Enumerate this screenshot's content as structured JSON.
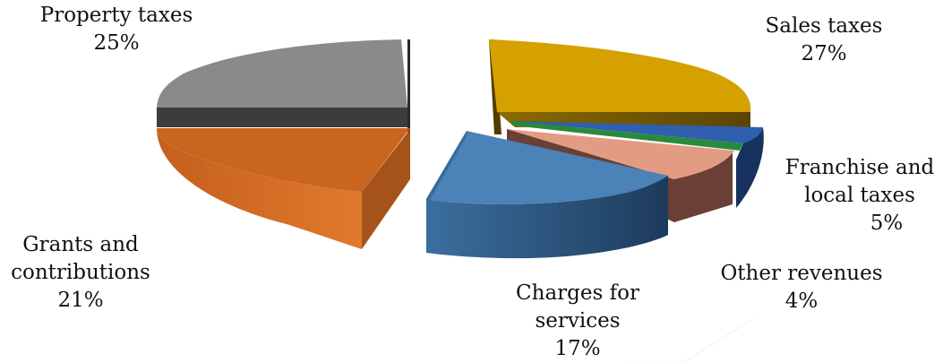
{
  "chart_data": {
    "type": "pie",
    "title": "",
    "slices": [
      {
        "label": "Property taxes",
        "value": 25,
        "value_label": "25%",
        "color": "#8a8a8a",
        "shade": "#3a3a3a"
      },
      {
        "label": "Sales taxes",
        "value": 27,
        "value_label": "27%",
        "color": "#d4a100",
        "shade": "#6b5200"
      },
      {
        "label": "Franchise and local taxes",
        "value": 5,
        "value_label": "5%",
        "color": "#2f5fae",
        "shade": "#17325e"
      },
      {
        "label": "Other revenues",
        "value": 4,
        "value_label": "4%",
        "color": "#e39c84",
        "shade": "#6a3f35"
      },
      {
        "label": "Charges for services",
        "value": 17,
        "value_label": "17%",
        "color": "#4b82b8",
        "shade": "#22415f"
      },
      {
        "label": "Grants and contributions",
        "value": 21,
        "value_label": "21%",
        "color": "#c9651f",
        "shade": "#9a4b15"
      }
    ],
    "legend": "none",
    "style": "3d-exploded-pie"
  }
}
